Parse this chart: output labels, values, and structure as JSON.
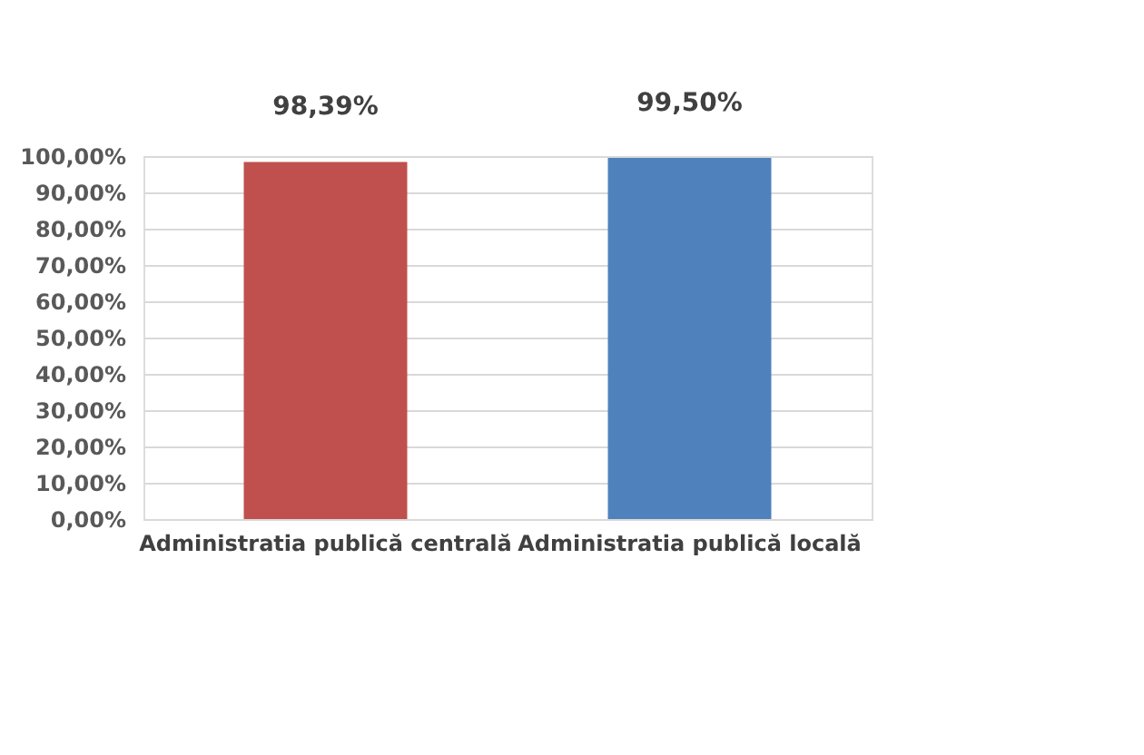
{
  "chart_data": {
    "type": "bar",
    "categories": [
      "Administratia publică centrală",
      "Administratia publică locală"
    ],
    "values": [
      98.39,
      99.5
    ],
    "colors": [
      "#c0504d",
      "#4f81bd"
    ],
    "value_labels": [
      "98,39%",
      "99,50%"
    ],
    "ylim": [
      0,
      100
    ],
    "yticks": [
      {
        "value": 0,
        "label": "0,00%"
      },
      {
        "value": 10,
        "label": "10,00%"
      },
      {
        "value": 20,
        "label": "20,00%"
      },
      {
        "value": 30,
        "label": "30,00%"
      },
      {
        "value": 40,
        "label": "40,00%"
      },
      {
        "value": 50,
        "label": "50,00%"
      },
      {
        "value": 60,
        "label": "60,00%"
      },
      {
        "value": 70,
        "label": "70,00%"
      },
      {
        "value": 80,
        "label": "80,00%"
      },
      {
        "value": 90,
        "label": "90,00%"
      },
      {
        "value": 100,
        "label": "100,00%"
      }
    ],
    "grid": "y"
  }
}
